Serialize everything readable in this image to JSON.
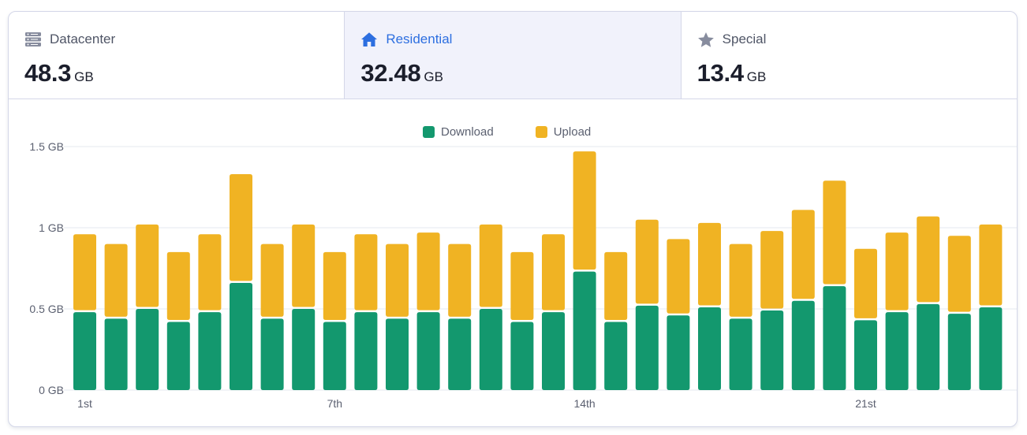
{
  "tabs": [
    {
      "key": "datacenter",
      "label": "Datacenter",
      "value": "48.3",
      "unit": "GB",
      "icon": "server-icon",
      "active": false
    },
    {
      "key": "residential",
      "label": "Residential",
      "value": "32.48",
      "unit": "GB",
      "icon": "home-icon",
      "active": true
    },
    {
      "key": "special",
      "label": "Special",
      "value": "13.4",
      "unit": "GB",
      "icon": "star-icon",
      "active": false
    }
  ],
  "colors": {
    "download": "#13986e",
    "upload": "#f0b323",
    "grid": "#e6e8ef",
    "accent": "#2d6fe0"
  },
  "chart_data": {
    "type": "bar",
    "stacked": true,
    "y_unit": "GB",
    "ylim": [
      0,
      1.55
    ],
    "yticks": [
      {
        "value": 0,
        "label": "0 GB"
      },
      {
        "value": 0.5,
        "label": "0.5 GB"
      },
      {
        "value": 1,
        "label": "1 GB"
      },
      {
        "value": 1.5,
        "label": "1.5 GB"
      }
    ],
    "x_tick_labels": [
      {
        "index": 0,
        "label": "1st"
      },
      {
        "index": 8,
        "label": "7th"
      },
      {
        "index": 16,
        "label": "14th"
      },
      {
        "index": 25,
        "label": "21st"
      }
    ],
    "legend_position": "top-center",
    "grid": true,
    "series": [
      {
        "name": "Download",
        "color": "#13986e",
        "values": [
          0.48,
          0.44,
          0.5,
          0.42,
          0.48,
          0.66,
          0.44,
          0.5,
          0.42,
          0.48,
          0.44,
          0.48,
          0.44,
          0.5,
          0.42,
          0.48,
          0.73,
          0.42,
          0.52,
          0.46,
          0.51,
          0.44,
          0.49,
          0.55,
          0.64,
          0.43,
          0.48,
          0.53,
          0.47,
          0.51
        ]
      },
      {
        "name": "Upload",
        "color": "#f0b323",
        "values": [
          0.48,
          0.46,
          0.52,
          0.43,
          0.48,
          0.67,
          0.46,
          0.52,
          0.43,
          0.48,
          0.46,
          0.49,
          0.46,
          0.52,
          0.43,
          0.48,
          0.74,
          0.43,
          0.53,
          0.47,
          0.52,
          0.46,
          0.49,
          0.56,
          0.65,
          0.44,
          0.49,
          0.54,
          0.48,
          0.51
        ]
      }
    ]
  }
}
